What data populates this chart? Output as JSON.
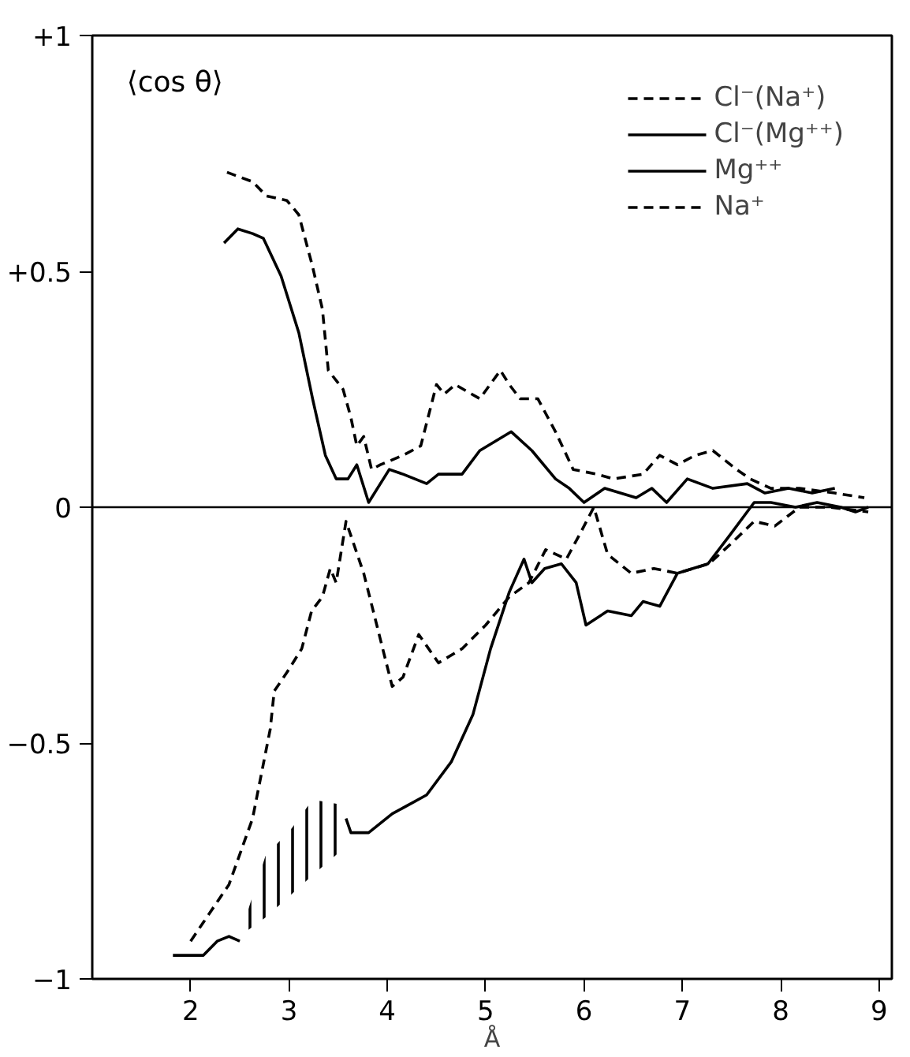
{
  "chart_data": {
    "type": "line",
    "ylabel": "⟨cos θ⟩",
    "xlabel": "Å",
    "xlim": [
      1,
      9.13
    ],
    "ylim": [
      -1,
      1
    ],
    "xticks": [
      2,
      3,
      4,
      5,
      6,
      7,
      8,
      9
    ],
    "yticks": [
      {
        "value": 1,
        "label": "+1"
      },
      {
        "value": 0.5,
        "label": "+0.5"
      },
      0,
      -0.5,
      -1
    ],
    "grid": false,
    "legend": "top right",
    "marker": "none",
    "ref_lines": [
      {
        "axis": "y",
        "value": 0,
        "color": "#000000",
        "line_style": "solid"
      }
    ],
    "series": [
      {
        "name": "Cl⁻(Na⁺)",
        "color": "#000000",
        "line_style": "dashed",
        "x": [
          2.37,
          2.63,
          2.77,
          2.98,
          3.1,
          3.24,
          3.34,
          3.4,
          3.55,
          3.63,
          3.69,
          3.76,
          3.84,
          3.93,
          4.16,
          4.34,
          4.5,
          4.58,
          4.69,
          4.94,
          5.15,
          5.24,
          5.35,
          5.53,
          5.71,
          5.89,
          6.13,
          6.3,
          6.6,
          6.77,
          6.95,
          7.13,
          7.31,
          7.55,
          7.69,
          7.9,
          8.19,
          8.55,
          8.85
        ],
        "values": [
          0.71,
          0.69,
          0.66,
          0.65,
          0.62,
          0.51,
          0.42,
          0.29,
          0.25,
          0.19,
          0.13,
          0.15,
          0.08,
          0.09,
          0.11,
          0.13,
          0.26,
          0.24,
          0.26,
          0.23,
          0.29,
          0.26,
          0.23,
          0.23,
          0.16,
          0.08,
          0.07,
          0.06,
          0.07,
          0.11,
          0.09,
          0.11,
          0.12,
          0.08,
          0.06,
          0.04,
          0.04,
          0.03,
          0.02
        ]
      },
      {
        "name": "Cl⁻(Mg⁺⁺)",
        "color": "#000000",
        "line_style": "solid",
        "x": [
          2.34,
          2.48,
          2.63,
          2.74,
          2.92,
          3.1,
          3.24,
          3.37,
          3.48,
          3.6,
          3.69,
          3.81,
          4.02,
          4.16,
          4.4,
          4.52,
          4.76,
          4.94,
          5.26,
          5.47,
          5.71,
          5.85,
          6.0,
          6.21,
          6.53,
          6.69,
          6.84,
          7.05,
          7.31,
          7.66,
          7.84,
          8.08,
          8.32,
          8.55
        ],
        "values": [
          0.56,
          0.59,
          0.58,
          0.57,
          0.49,
          0.37,
          0.23,
          0.11,
          0.06,
          0.06,
          0.09,
          0.01,
          0.08,
          0.07,
          0.05,
          0.07,
          0.07,
          0.12,
          0.16,
          0.12,
          0.06,
          0.04,
          0.01,
          0.04,
          0.02,
          0.04,
          0.01,
          0.06,
          0.04,
          0.05,
          0.03,
          0.04,
          0.03,
          0.04
        ]
      },
      {
        "name": "Mg⁺⁺",
        "color": "#000000",
        "line_style": "solid",
        "x": [
          1.82,
          2.13,
          2.27,
          2.39,
          2.5,
          2.56,
          2.76,
          3.03,
          3.24,
          3.52,
          3.58,
          3.63,
          3.81,
          4.05,
          4.4,
          4.65,
          4.87,
          5.05,
          5.24,
          5.39,
          5.47,
          5.6,
          5.77,
          5.92,
          6.02,
          6.24,
          6.48,
          6.6,
          6.77,
          6.95,
          7.26,
          7.48,
          7.73,
          7.9,
          8.15,
          8.37,
          8.61,
          8.76,
          8.89
        ],
        "values": [
          -0.95,
          -0.95,
          -0.92,
          -0.91,
          -0.92,
          null,
          null,
          null,
          null,
          null,
          -0.66,
          -0.69,
          -0.69,
          -0.65,
          -0.61,
          -0.54,
          -0.44,
          -0.3,
          -0.18,
          -0.11,
          -0.16,
          -0.13,
          -0.12,
          -0.16,
          -0.25,
          -0.22,
          -0.23,
          -0.2,
          -0.21,
          -0.14,
          -0.12,
          -0.06,
          0.01,
          0.01,
          0.0,
          0.01,
          0.0,
          -0.01,
          0.0
        ],
        "lower": [
          null,
          null,
          null,
          null,
          null,
          -0.9,
          -0.87,
          -0.82,
          -0.78,
          -0.73,
          null,
          null,
          null,
          null,
          null,
          null,
          null,
          null,
          null,
          null,
          null,
          null,
          null,
          null,
          null,
          null,
          null,
          null,
          null,
          null,
          null,
          null,
          null,
          null,
          null,
          null,
          null,
          null,
          null
        ],
        "upper": [
          null,
          null,
          null,
          null,
          null,
          -0.87,
          -0.74,
          -0.68,
          -0.62,
          -0.63,
          null,
          null,
          null,
          null,
          null,
          null,
          null,
          null,
          null,
          null,
          null,
          null,
          null,
          null,
          null,
          null,
          null,
          null,
          null,
          null,
          null,
          null,
          null,
          null,
          null,
          null,
          null,
          null,
          null
        ]
      },
      {
        "name": "Na⁺",
        "color": "#000000",
        "line_style": "dashed",
        "x": [
          2.0,
          2.39,
          2.63,
          2.81,
          2.85,
          2.98,
          3.13,
          3.23,
          3.34,
          3.42,
          3.48,
          3.58,
          3.76,
          4.05,
          4.16,
          4.32,
          4.52,
          4.76,
          5.0,
          5.24,
          5.44,
          5.61,
          5.82,
          5.95,
          6.1,
          6.24,
          6.48,
          6.71,
          6.95,
          7.27,
          7.48,
          7.73,
          7.94,
          8.19,
          8.5,
          8.89
        ],
        "values": [
          -0.92,
          -0.8,
          -0.66,
          -0.47,
          -0.39,
          -0.35,
          -0.3,
          -0.22,
          -0.19,
          -0.13,
          -0.16,
          -0.03,
          -0.14,
          -0.38,
          -0.36,
          -0.27,
          -0.33,
          -0.3,
          -0.25,
          -0.19,
          -0.16,
          -0.09,
          -0.11,
          -0.06,
          0.0,
          -0.1,
          -0.14,
          -0.13,
          -0.14,
          -0.12,
          -0.08,
          -0.03,
          -0.04,
          0.0,
          0.0,
          -0.01
        ]
      }
    ]
  }
}
